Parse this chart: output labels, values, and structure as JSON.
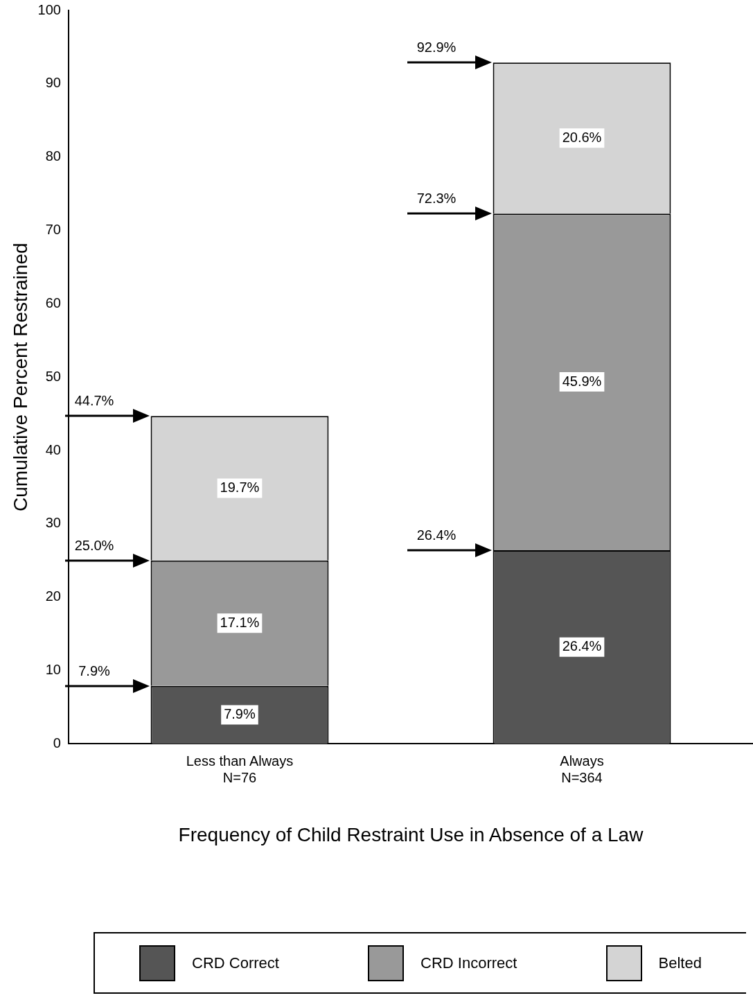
{
  "chart_data": {
    "type": "bar",
    "stacked": true,
    "xlabel": "Frequency of Child Restraint Use in Absence of a Law",
    "ylabel": "Cumulative Percent Restrained",
    "categories": [
      "Less than Always\nN=76",
      "Always\nN=364"
    ],
    "series": [
      {
        "name": "CRD Correct",
        "color": "#555555",
        "values": [
          7.9,
          26.4
        ],
        "value_labels": [
          "7.9%",
          "26.4%"
        ]
      },
      {
        "name": "CRD Incorrect",
        "color": "#999999",
        "values": [
          17.1,
          45.9
        ],
        "value_labels": [
          "17.1%",
          "45.9%"
        ]
      },
      {
        "name": "Belted",
        "color": "#d4d4d4",
        "values": [
          19.7,
          20.6
        ],
        "value_labels": [
          "19.7%",
          "20.6%"
        ]
      }
    ],
    "ylim": [
      0,
      100
    ],
    "yticks": [
      0,
      10,
      20,
      30,
      40,
      50,
      60,
      70,
      80,
      90,
      100
    ],
    "grid": false,
    "legend": "bottom",
    "annotations": [
      "7.9%",
      "25.0%",
      "44.7%",
      "26.4%",
      "72.3%",
      "92.9%"
    ]
  }
}
